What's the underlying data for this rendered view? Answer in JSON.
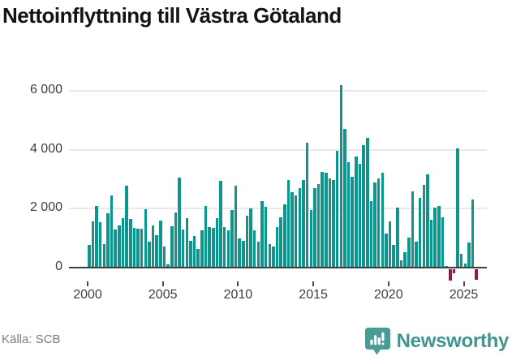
{
  "title": "Nettoinflyttning till Västra Götaland",
  "footer": {
    "source": "Källa: SCB",
    "brand": "Newsworthy"
  },
  "colors": {
    "bar_positive": "#0c968e",
    "bar_negative": "#8e1a4c",
    "grid": "#e9e9e9",
    "axis": "#3f3f3f",
    "tick_text": "#3d3d3d",
    "title_text": "#141414",
    "source_text": "#7b7b7b",
    "brand_teal": "#40968f"
  },
  "chart_data": {
    "type": "bar",
    "title": "Nettoinflyttning till Västra Götaland",
    "period": "quarterly",
    "start_year": 2000,
    "xlabel": "",
    "ylabel": "",
    "y_ticks": [
      6000,
      4000,
      2000,
      0
    ],
    "y_tick_labels": [
      "6 000",
      "4 000",
      "2 000",
      "0"
    ],
    "x_tick_years": [
      2000,
      2005,
      2010,
      2015,
      2020,
      2025
    ],
    "x_tick_labels": [
      "2000",
      "2005",
      "2010",
      "2015",
      "2020",
      "2025"
    ],
    "ylim": [
      -500,
      6600
    ],
    "grid": "horizontal",
    "legend": "none",
    "values": [
      760,
      1560,
      2080,
      1550,
      790,
      1840,
      2450,
      1290,
      1430,
      1690,
      2780,
      1660,
      1340,
      1330,
      1310,
      1970,
      890,
      1420,
      1100,
      1590,
      710,
      100,
      1400,
      1860,
      3060,
      1300,
      1690,
      910,
      1080,
      640,
      1260,
      2080,
      1370,
      1350,
      1690,
      2940,
      1390,
      1260,
      1960,
      2790,
      980,
      900,
      1760,
      2010,
      1270,
      880,
      2250,
      2070,
      790,
      710,
      1380,
      1700,
      2140,
      2980,
      2570,
      2450,
      2700,
      2980,
      4250,
      1960,
      2700,
      2840,
      3250,
      3210,
      3020,
      2980,
      3950,
      6200,
      4700,
      3570,
      3070,
      3780,
      3510,
      4150,
      4390,
      2250,
      2900,
      3020,
      3210,
      1170,
      1580,
      760,
      2040,
      250,
      530,
      1030,
      2590,
      880,
      2360,
      2800,
      3160,
      1630,
      2040,
      2100,
      1700,
      50,
      -380,
      -130,
      4050,
      480,
      140,
      850,
      2310,
      -370
    ]
  }
}
